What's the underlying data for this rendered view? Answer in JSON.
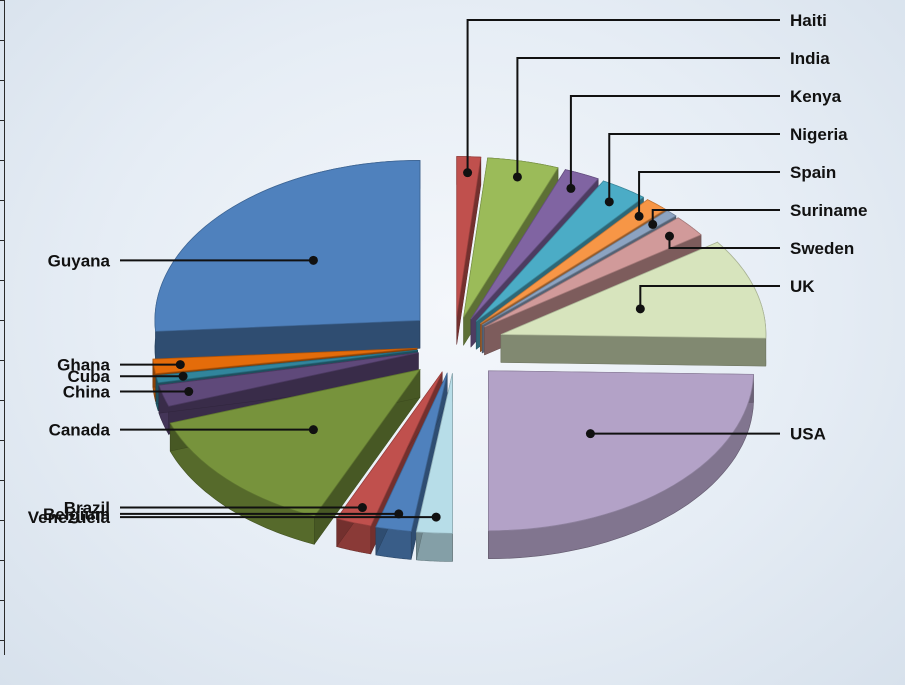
{
  "chart_data": {
    "type": "pie",
    "title": "",
    "categories": [
      "Haiti",
      "India",
      "Kenya",
      "Nigeria",
      "Spain",
      "Suriname",
      "Sweden",
      "UK",
      "USA",
      "Venezuela",
      "Belgium",
      "Brazil",
      "Canada",
      "China",
      "Cuba",
      "Ghana",
      "Guyana"
    ],
    "values": [
      1,
      3,
      1.5,
      2,
      1,
      0.5,
      1.5,
      7,
      17,
      1.5,
      1.5,
      1.5,
      9,
      1.5,
      0.5,
      1,
      18
    ],
    "colors": [
      "#c0504d",
      "#9bbb59",
      "#8064a2",
      "#4bacc6",
      "#f79646",
      "#8ca3c1",
      "#d19a9a",
      "#d7e4bd",
      "#b3a2c7",
      "#b7dde8",
      "#4f81bd",
      "#c0504d",
      "#77933c",
      "#5f497a",
      "#31859c",
      "#e46c0a",
      "#4f81bd"
    ],
    "legend": "leader-line labels around slices",
    "style": "3d exploded pie"
  }
}
